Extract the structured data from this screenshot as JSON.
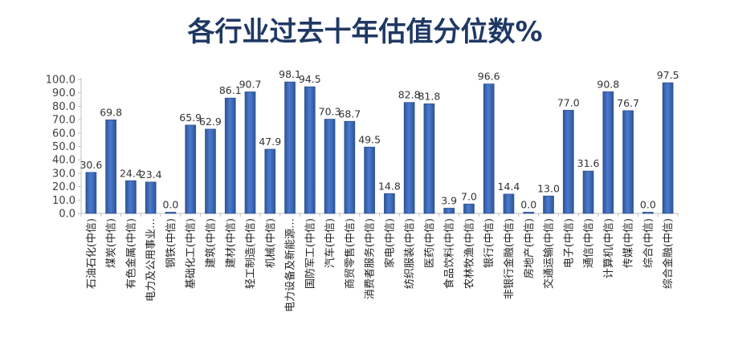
{
  "chart_data": {
    "type": "bar",
    "title": "各行业过去十年估值分位数%",
    "categories": [
      "石油石化(中信)",
      "煤炭(中信)",
      "有色金属(中信)",
      "电力及公用事业…",
      "钢铁(中信)",
      "基础化工(中信)",
      "建筑(中信)",
      "建材(中信)",
      "轻工制造(中信)",
      "机械(中信)",
      "电力设备及新能源…",
      "国防军工(中信)",
      "汽车(中信)",
      "商贸零售(中信)",
      "消费者服务(中信)",
      "家电(中信)",
      "纺织服装(中信)",
      "医药(中信)",
      "食品饮料(中信)",
      "农林牧渔(中信)",
      "银行(中信)",
      "非银行金融(中信)",
      "房地产(中信)",
      "交通运输(中信)",
      "电子(中信)",
      "通信(中信)",
      "计算机(中信)",
      "传媒(中信)",
      "综合(中信)",
      "综合金融(中信)"
    ],
    "values": [
      30.6,
      69.8,
      24.4,
      23.4,
      0.0,
      65.9,
      62.9,
      86.1,
      90.7,
      47.9,
      98.1,
      94.5,
      70.3,
      68.7,
      49.5,
      14.8,
      82.8,
      81.8,
      3.9,
      7.0,
      96.6,
      14.4,
      0.0,
      13.0,
      77.0,
      31.6,
      90.8,
      76.7,
      0.0,
      97.5
    ],
    "data_labels": [
      "30.6",
      "69.8",
      "24.4",
      "23.4",
      "0.0",
      "65.9",
      "62.9",
      "86.1",
      "90.7",
      "47.9",
      "98.1",
      "94.5",
      "70.3",
      "68.7",
      "49.5",
      "14.8",
      "82.8",
      "81.8",
      "3.9",
      "7.0",
      "96.6",
      "14.4",
      "0.0",
      "13.0",
      "77.0",
      "31.6",
      "90.8",
      "76.7",
      "0.0",
      "97.5"
    ],
    "yticks": [
      "0.0",
      "10.0",
      "20.0",
      "30.0",
      "40.0",
      "50.0",
      "60.0",
      "70.0",
      "80.0",
      "90.0",
      "100.0"
    ],
    "ylim": [
      0,
      100
    ],
    "grid": false,
    "legend": "none",
    "bar_color": "#4472c4",
    "bar_edge_color": "#2f528f"
  }
}
